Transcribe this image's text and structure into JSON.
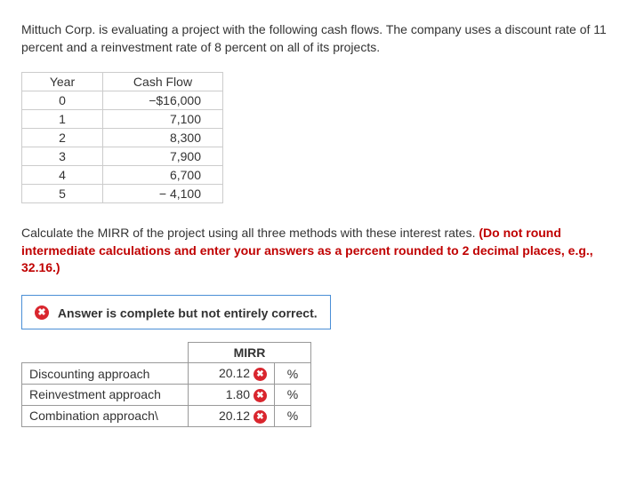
{
  "problem": {
    "text": "Mittuch Corp. is evaluating a project with the following cash flows. The company uses a discount rate of 11 percent and a reinvestment rate of 8 percent on all of its projects."
  },
  "cashflows": {
    "headers": [
      "Year",
      "Cash Flow"
    ],
    "rows": [
      {
        "year": "0",
        "cf": "−$16,000"
      },
      {
        "year": "1",
        "cf": "7,100"
      },
      {
        "year": "2",
        "cf": "8,300"
      },
      {
        "year": "3",
        "cf": "7,900"
      },
      {
        "year": "4",
        "cf": "6,700"
      },
      {
        "year": "5",
        "cf": "−   4,100"
      }
    ]
  },
  "instruction": {
    "lead": "Calculate the MIRR of the project using all three methods with these interest rates. ",
    "red": "(Do not round intermediate calculations and enter your answers as a percent rounded to 2 decimal places, e.g., 32.16.)"
  },
  "feedback": {
    "text": "Answer is complete but not entirely correct."
  },
  "answers": {
    "header": "MIRR",
    "unit": "%",
    "rows": [
      {
        "label": "Discounting approach",
        "value": "20.12",
        "correct": false
      },
      {
        "label": "Reinvestment approach",
        "value": "1.80",
        "correct": false
      },
      {
        "label": "Combination approach\\",
        "value": "20.12",
        "correct": false
      }
    ]
  },
  "icons": {
    "x_glyph": "✖"
  }
}
